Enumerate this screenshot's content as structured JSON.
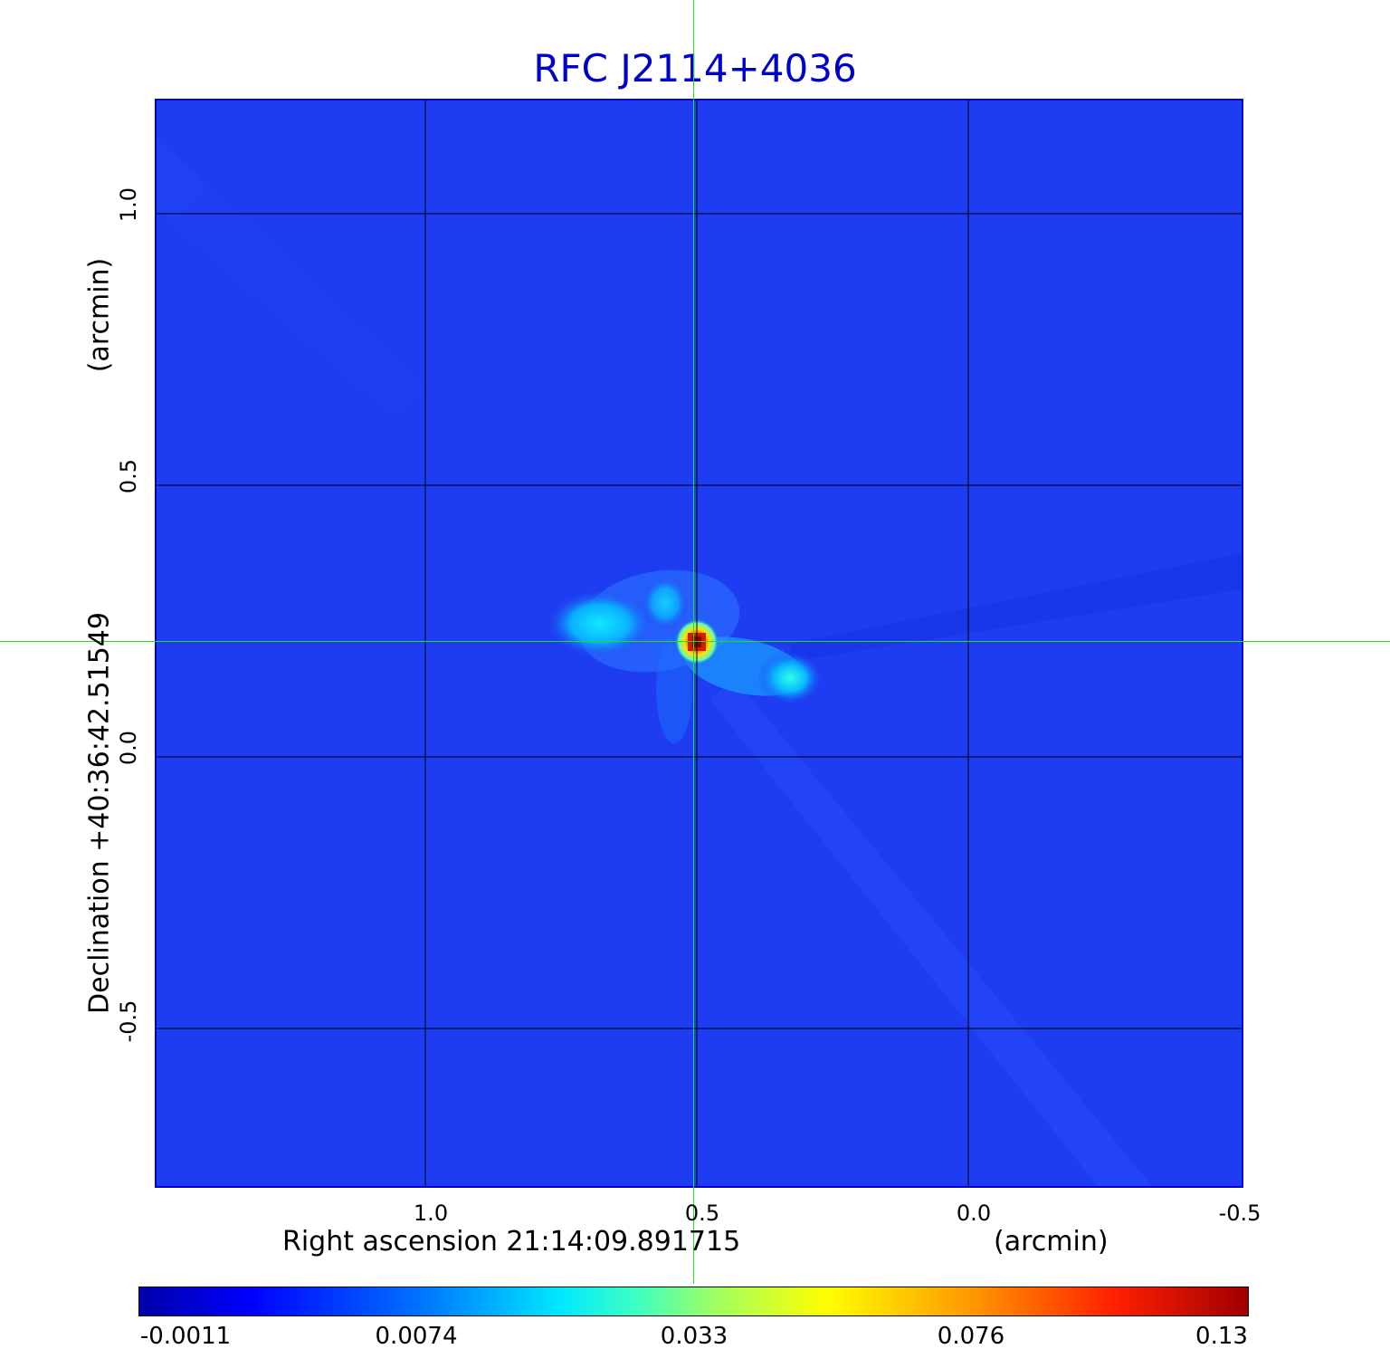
{
  "title": "RFC J2114+4036",
  "x_axis": {
    "label": "Right ascension  21:14:09.891715",
    "unit": "(arcmin)",
    "ticks": [
      "1.0",
      "0.5",
      "0.0",
      "-0.5"
    ]
  },
  "y_axis": {
    "label": "Declination  +40:36:42.51549",
    "unit": "(arcmin)",
    "ticks": [
      "1.0",
      "0.5",
      "0.0",
      "-0.5"
    ]
  },
  "colorbar": {
    "colormap": "jet",
    "labels": [
      "-0.0011",
      "0.0074",
      "0.033",
      "0.076",
      "0.13"
    ]
  },
  "colors": {
    "title": "#0000cc",
    "crosshair": "#22dd22",
    "background_field": "#1e3cf2"
  }
}
